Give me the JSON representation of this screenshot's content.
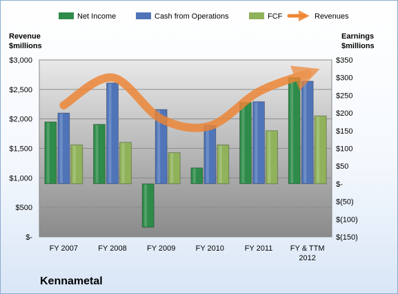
{
  "company": "Kennametal",
  "colors": {
    "net_income": "#2e8b4a",
    "cash_from_operations": "#4f74b8",
    "fcf": "#8fb25a",
    "revenues": "#ee8433"
  },
  "chart_data": {
    "type": "bar",
    "categories": [
      "FY 2007",
      "FY 2008",
      "FY 2009",
      "FY 2010",
      "FY 2011",
      "FY & TTM 2012"
    ],
    "left_axis": {
      "title_line1": "Revenue",
      "title_line2": "$millions",
      "range": [
        0,
        3000
      ],
      "ticks": [
        "$-",
        "$500",
        "$1,000",
        "$1,500",
        "$2,000",
        "$2,500",
        "$3,000"
      ]
    },
    "right_axis": {
      "title_line1": "Earnings",
      "title_line2": "$millions",
      "range": [
        -150,
        350
      ],
      "ticks": [
        "$(150)",
        "$(100)",
        "$(50)",
        "$-",
        "$50",
        "$100",
        "$150",
        "$200",
        "$250",
        "$300",
        "$350"
      ]
    },
    "bar_series": [
      {
        "name": "Net Income",
        "axis": "right",
        "values": [
          175,
          168,
          -123,
          45,
          230,
          300
        ]
      },
      {
        "name": "Cash from Operations",
        "axis": "right",
        "values": [
          200,
          285,
          210,
          165,
          232,
          290
        ]
      },
      {
        "name": "FCF",
        "axis": "right",
        "values": [
          110,
          117,
          88,
          110,
          150,
          192
        ]
      }
    ],
    "line_series": {
      "name": "Revenues",
      "axis": "left",
      "values": [
        2230,
        2700,
        2000,
        1880,
        2460,
        2770
      ]
    },
    "grid": true,
    "legend": "top"
  }
}
